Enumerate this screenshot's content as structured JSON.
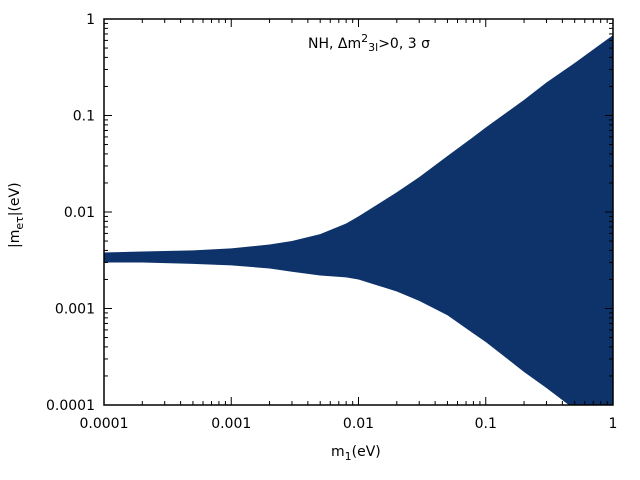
{
  "chart_data": {
    "type": "area",
    "annotation_parts": {
      "prefix": "NH, Δm",
      "sup": "2",
      "sub": "3l",
      "suffix": ">0, 3 σ"
    },
    "xlabel_parts": {
      "base": "m",
      "sub": "1",
      "unit": "(eV)"
    },
    "ylabel_parts": {
      "pre": "|m",
      "sub": "eτ",
      "post": "|(eV)"
    },
    "x_scale": "log",
    "y_scale": "log",
    "xlim": [
      0.0001,
      1
    ],
    "ylim": [
      0.0001,
      1
    ],
    "x_ticks": [
      {
        "value": 0.0001,
        "label": "0.0001"
      },
      {
        "value": 0.001,
        "label": "0.001"
      },
      {
        "value": 0.01,
        "label": "0.01"
      },
      {
        "value": 0.1,
        "label": "0.1"
      },
      {
        "value": 1,
        "label": "1"
      }
    ],
    "y_ticks": [
      {
        "value": 0.0001,
        "label": "0.0001"
      },
      {
        "value": 0.001,
        "label": "0.001"
      },
      {
        "value": 0.01,
        "label": "0.01"
      },
      {
        "value": 0.1,
        "label": "0.1"
      },
      {
        "value": 1,
        "label": "1"
      }
    ],
    "fill_color": "#0e336b",
    "band": {
      "x": [
        0.0001,
        0.0002,
        0.0005,
        0.001,
        0.002,
        0.003,
        0.005,
        0.008,
        0.01,
        0.02,
        0.03,
        0.05,
        0.08,
        0.1,
        0.2,
        0.3,
        0.5,
        1
      ],
      "upper": [
        0.0038,
        0.0039,
        0.004,
        0.0042,
        0.0046,
        0.005,
        0.0059,
        0.0076,
        0.009,
        0.016,
        0.023,
        0.038,
        0.06,
        0.075,
        0.145,
        0.22,
        0.35,
        0.68
      ],
      "lower": [
        0.003,
        0.003,
        0.0029,
        0.0028,
        0.0026,
        0.0024,
        0.0022,
        0.0021,
        0.002,
        0.0015,
        0.0012,
        0.00085,
        0.00055,
        0.00045,
        0.00022,
        0.00015,
        9e-05,
        0.0
      ]
    }
  }
}
